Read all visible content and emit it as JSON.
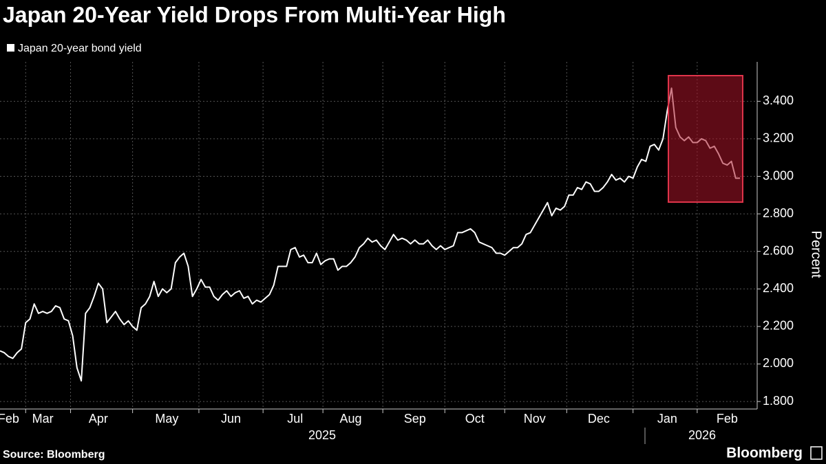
{
  "chart_data": {
    "type": "line",
    "title": "Japan 20-Year Yield Drops From Multi-Year High",
    "y_label": "Percent",
    "source": "Source: Bloomberg",
    "brand": "Bloomberg",
    "year_labels": [
      "2025",
      "2026"
    ],
    "grid": true,
    "ylim": [
      1.76,
      3.61
    ],
    "yticks": [
      {
        "value": 1.8,
        "label": "1.800"
      },
      {
        "value": 2.0,
        "label": "2.000"
      },
      {
        "value": 2.2,
        "label": "2.200"
      },
      {
        "value": 2.4,
        "label": "2.400"
      },
      {
        "value": 2.6,
        "label": "2.600"
      },
      {
        "value": 2.8,
        "label": "2.800"
      },
      {
        "value": 3.0,
        "label": "3.000"
      },
      {
        "value": 3.2,
        "label": "3.200"
      },
      {
        "value": 3.4,
        "label": "3.400"
      }
    ],
    "categories": [
      null,
      null,
      "Feb",
      null,
      null,
      null,
      null,
      null,
      null,
      null,
      "Mar",
      null,
      null,
      null,
      null,
      null,
      null,
      null,
      null,
      null,
      null,
      null,
      null,
      "Apr",
      null,
      null,
      null,
      null,
      null,
      null,
      null,
      null,
      null,
      null,
      null,
      null,
      null,
      null,
      null,
      "May",
      null,
      null,
      null,
      null,
      null,
      null,
      null,
      null,
      null,
      null,
      null,
      null,
      null,
      null,
      "Jun",
      null,
      null,
      null,
      null,
      null,
      null,
      null,
      null,
      null,
      null,
      null,
      null,
      null,
      null,
      "Jul",
      null,
      null,
      null,
      null,
      null,
      null,
      null,
      null,
      null,
      null,
      null,
      null,
      "Aug",
      null,
      null,
      null,
      null,
      null,
      null,
      null,
      null,
      null,
      null,
      null,
      null,
      null,
      null,
      "Sep",
      null,
      null,
      null,
      null,
      null,
      null,
      null,
      null,
      null,
      null,
      null,
      null,
      null,
      "Oct",
      null,
      null,
      null,
      null,
      null,
      null,
      null,
      null,
      null,
      null,
      null,
      null,
      null,
      "Nov",
      null,
      null,
      null,
      null,
      null,
      null,
      null,
      null,
      null,
      null,
      null,
      null,
      null,
      null,
      "Dec",
      null,
      null,
      null,
      null,
      null,
      null,
      null,
      null,
      null,
      null,
      null,
      null,
      null,
      null,
      null,
      "Jan",
      null,
      null,
      null,
      null,
      null,
      null,
      null,
      null,
      null,
      null,
      null,
      null,
      null,
      "Feb",
      null,
      null,
      null
    ],
    "series": [
      {
        "name": "Japan 20-year bond yield",
        "color": "#ffffff",
        "values": [
          2.07,
          2.06,
          2.04,
          2.03,
          2.06,
          2.08,
          2.22,
          2.24,
          2.32,
          2.27,
          2.28,
          2.27,
          2.28,
          2.31,
          2.3,
          2.24,
          2.23,
          2.15,
          1.98,
          1.91,
          2.27,
          2.3,
          2.36,
          2.43,
          2.4,
          2.22,
          2.25,
          2.28,
          2.24,
          2.21,
          2.23,
          2.2,
          2.18,
          2.3,
          2.32,
          2.36,
          2.44,
          2.36,
          2.4,
          2.38,
          2.4,
          2.54,
          2.57,
          2.59,
          2.52,
          2.36,
          2.4,
          2.45,
          2.41,
          2.41,
          2.36,
          2.34,
          2.37,
          2.39,
          2.36,
          2.38,
          2.39,
          2.35,
          2.36,
          2.32,
          2.34,
          2.33,
          2.35,
          2.37,
          2.42,
          2.52,
          2.52,
          2.52,
          2.61,
          2.62,
          2.57,
          2.58,
          2.54,
          2.54,
          2.59,
          2.53,
          2.55,
          2.56,
          2.56,
          2.5,
          2.52,
          2.52,
          2.54,
          2.57,
          2.62,
          2.64,
          2.67,
          2.65,
          2.66,
          2.63,
          2.61,
          2.65,
          2.69,
          2.66,
          2.67,
          2.66,
          2.64,
          2.66,
          2.64,
          2.64,
          2.66,
          2.63,
          2.61,
          2.63,
          2.61,
          2.62,
          2.63,
          2.7,
          2.7,
          2.71,
          2.72,
          2.7,
          2.65,
          2.64,
          2.63,
          2.62,
          2.59,
          2.59,
          2.58,
          2.6,
          2.62,
          2.62,
          2.64,
          2.69,
          2.7,
          2.74,
          2.78,
          2.82,
          2.86,
          2.79,
          2.83,
          2.82,
          2.84,
          2.9,
          2.9,
          2.94,
          2.93,
          2.97,
          2.96,
          2.92,
          2.92,
          2.94,
          2.97,
          3.01,
          2.98,
          2.99,
          2.97,
          3.0,
          2.99,
          3.05,
          3.09,
          3.08,
          3.16,
          3.17,
          3.14,
          3.2,
          3.35,
          3.47,
          3.26,
          3.21,
          3.19,
          3.21,
          3.18,
          3.18,
          3.2,
          3.19,
          3.15,
          3.16,
          3.12,
          3.07,
          3.06,
          3.08,
          2.99,
          2.99
        ]
      }
    ]
  }
}
